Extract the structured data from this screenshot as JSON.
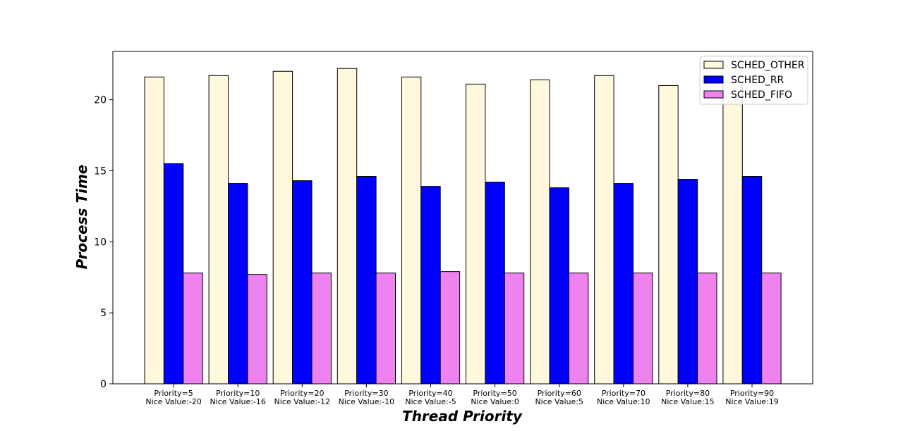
{
  "chart_data": {
    "type": "bar",
    "title": "",
    "xlabel": "Thread Priority",
    "ylabel": "Process Time",
    "ylim": [
      0,
      23.4
    ],
    "yticks": [
      0,
      5,
      10,
      15,
      20
    ],
    "grid": false,
    "legend_position": "top-right",
    "categories": [
      [
        "Priority=5",
        "Nice Value:-20"
      ],
      [
        "Priority=10",
        "Nice Value:-16"
      ],
      [
        "Priority=20",
        "Nice Value:-12"
      ],
      [
        "Priority=30",
        "Nice Value:-10"
      ],
      [
        "Priority=40",
        "Nice Value:-5"
      ],
      [
        "Priority=50",
        "Nice Value:0"
      ],
      [
        "Priority=60",
        "Nice Value:5"
      ],
      [
        "Priority=70",
        "Nice Value:10"
      ],
      [
        "Priority=80",
        "Nice Value:15"
      ],
      [
        "Priority=90",
        "Nice Value:19"
      ]
    ],
    "series": [
      {
        "name": "SCHED_OTHER",
        "color": "#fff8dc",
        "values": [
          21.6,
          21.7,
          22.0,
          22.2,
          21.6,
          21.1,
          21.4,
          21.7,
          21.0,
          21.2
        ]
      },
      {
        "name": "SCHED_RR",
        "color": "#0000ff",
        "values": [
          15.5,
          14.1,
          14.3,
          14.6,
          13.9,
          14.2,
          13.8,
          14.1,
          14.4,
          14.6
        ]
      },
      {
        "name": "SCHED_FIFO",
        "color": "#ee82ee",
        "values": [
          7.8,
          7.7,
          7.8,
          7.8,
          7.9,
          7.8,
          7.8,
          7.8,
          7.8,
          7.8
        ]
      }
    ]
  }
}
